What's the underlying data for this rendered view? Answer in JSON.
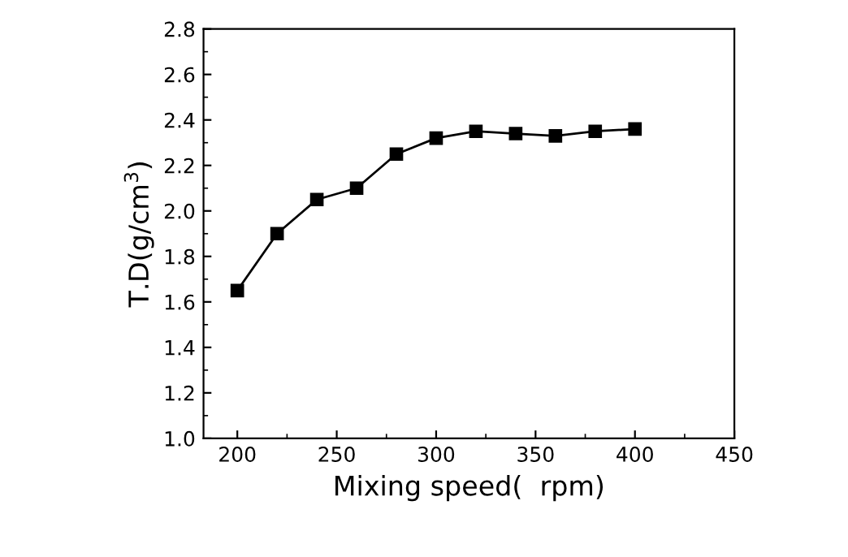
{
  "chart_data": {
    "type": "line",
    "xlabel": "Mixing speed(  rpm)",
    "ylabel": "T.D(g/cm$^{3}$)",
    "x": [
      200,
      220,
      240,
      260,
      280,
      300,
      320,
      340,
      360,
      380,
      400
    ],
    "series": [
      {
        "color": "#000000",
        "values": [
          1.65,
          1.9,
          2.05,
          2.1,
          2.25,
          2.32,
          2.35,
          2.34,
          2.33,
          2.35,
          2.36
        ]
      }
    ],
    "xlim": [
      183,
      450
    ],
    "xticks": [
      200,
      250,
      300,
      350,
      400,
      450
    ],
    "ylim": [
      1.0,
      2.8
    ],
    "yticks": [
      {
        "value": 1.0,
        "label": "1.0"
      },
      1.2,
      1.4,
      1.6,
      1.8,
      {
        "value": 2.0,
        "label": "2.0"
      },
      2.2,
      2.4,
      2.6,
      2.8
    ],
    "marker": "square",
    "line_style": "solid",
    "grid": false,
    "legend": false
  }
}
